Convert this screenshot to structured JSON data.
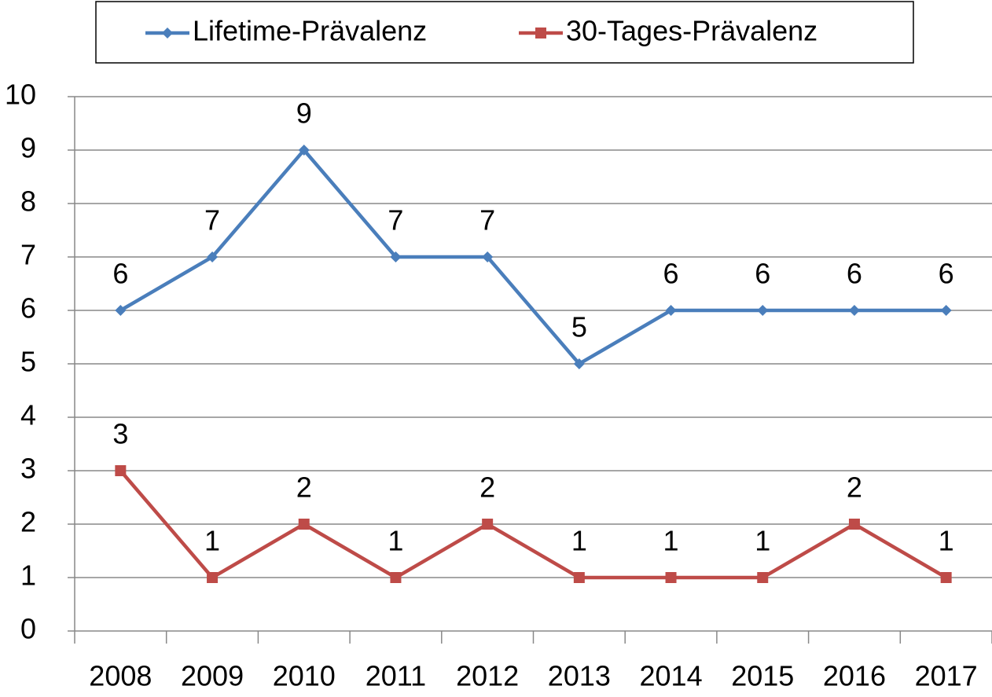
{
  "chart_data": {
    "type": "line",
    "categories": [
      "2008",
      "2009",
      "2010",
      "2011",
      "2012",
      "2013",
      "2014",
      "2015",
      "2016",
      "2017"
    ],
    "series": [
      {
        "name": "Lifetime-Prävalenz",
        "color": "#4a7ebb",
        "marker": "diamond",
        "values": [
          6,
          7,
          9,
          7,
          7,
          5,
          6,
          6,
          6,
          6
        ]
      },
      {
        "name": "30-Tages-Prävalenz",
        "color": "#be4b48",
        "marker": "square",
        "values": [
          3,
          1,
          2,
          1,
          2,
          1,
          1,
          1,
          2,
          1
        ]
      }
    ],
    "ylim": [
      0,
      10
    ],
    "yticks": [
      0,
      1,
      2,
      3,
      4,
      5,
      6,
      7,
      8,
      9,
      10
    ],
    "grid": true,
    "legend": "top",
    "data_labels": true
  }
}
